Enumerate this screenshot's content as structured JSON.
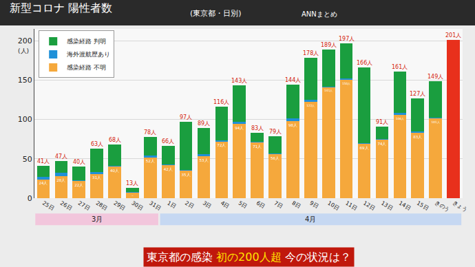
{
  "chart_data": {
    "type": "bar",
    "title": "新型コロナ 陽性者数",
    "subtitle": "(東京都・日別)",
    "source": "ANNまとめ",
    "y_label": "(人)",
    "stacked": true,
    "grid": true,
    "legend": "top-left",
    "data_labels": true,
    "categories": [
      "25日",
      "26日",
      "27日",
      "28日",
      "29日",
      "30日",
      "31日",
      "1日",
      "2日",
      "3日",
      "4日",
      "5日",
      "6日",
      "7日",
      "8日",
      "9日",
      "10日",
      "11日",
      "12日",
      "13日",
      "14日",
      "15日",
      "きのう",
      "きょう"
    ],
    "month_groups": [
      {
        "label": "3月",
        "from": "25日",
        "to": "31日"
      },
      {
        "label": "4月",
        "from": "1日",
        "to": "きょう"
      }
    ],
    "series": [
      {
        "name": "感染経路 不明",
        "color": "#f5a83c",
        "colors": [
          "#f5a83c",
          "#f5a83c",
          "#f5a83c",
          "#f5a83c",
          "#f5a83c",
          "#f5a83c",
          "#f5a83c",
          "#f5a83c",
          "#f5a83c",
          "#f5a83c",
          "#f5a83c",
          "#f5a83c",
          "#f5a83c",
          "#f5a83c",
          "#f5a83c",
          "#f5a83c",
          "#f5a83c",
          "#f5a83c",
          "#f5a83c",
          "#f5a83c",
          "#f5a83c",
          "#f5a83c",
          "#f5a83c",
          "#e8301c"
        ],
        "values": [
          24,
          28,
          22,
          31,
          40,
          7,
          52,
          42,
          35,
          53,
          72,
          94,
          71,
          56,
          98,
          122,
          141,
          150,
          69,
          74,
          106,
          83,
          101,
          201
        ],
        "value_labels": [
          "24人",
          "28人",
          "22人",
          "31人",
          "40人",
          "7人",
          "52人",
          "42人",
          "35人",
          "53人",
          "72人",
          "94人",
          "71人",
          "56人",
          "98人",
          "122人",
          "141人",
          "150人",
          "69人",
          "74人",
          "106人",
          "83人",
          "101人",
          null
        ]
      },
      {
        "name": "海外渡航歴あり",
        "color": "#1e90d8",
        "values": [
          3,
          4,
          1,
          2,
          1,
          1,
          2,
          1,
          1,
          3,
          1,
          3,
          1,
          1,
          3,
          3,
          1,
          2,
          1,
          1,
          2,
          2,
          1,
          null
        ]
      },
      {
        "name": "感染経路 判明",
        "color": "#1a9e3f",
        "values": [
          14,
          15,
          17,
          30,
          27,
          5,
          24,
          23,
          61,
          33,
          43,
          46,
          11,
          22,
          43,
          53,
          47,
          45,
          96,
          16,
          53,
          42,
          47,
          null
        ]
      }
    ],
    "totals": [
      41,
      47,
      40,
      63,
      68,
      13,
      78,
      66,
      97,
      89,
      116,
      143,
      83,
      79,
      144,
      178,
      189,
      197,
      166,
      91,
      161,
      127,
      149,
      201
    ],
    "total_labels": [
      "41人",
      "47人",
      "40人",
      "63人",
      "68人",
      "13人",
      "78人",
      "66人",
      "97人",
      "89人",
      "116人",
      "143人",
      "83人",
      "79人",
      "144人",
      "178人",
      "189人",
      "197人",
      "166人",
      "91人",
      "161人",
      "127人",
      "149人",
      "201人"
    ],
    "ylim": [
      0,
      215
    ],
    "yticks": [
      0,
      50,
      100,
      150,
      200
    ],
    "banner": [
      "東京都の感染",
      "初の200人超",
      "今の状況は？"
    ]
  }
}
